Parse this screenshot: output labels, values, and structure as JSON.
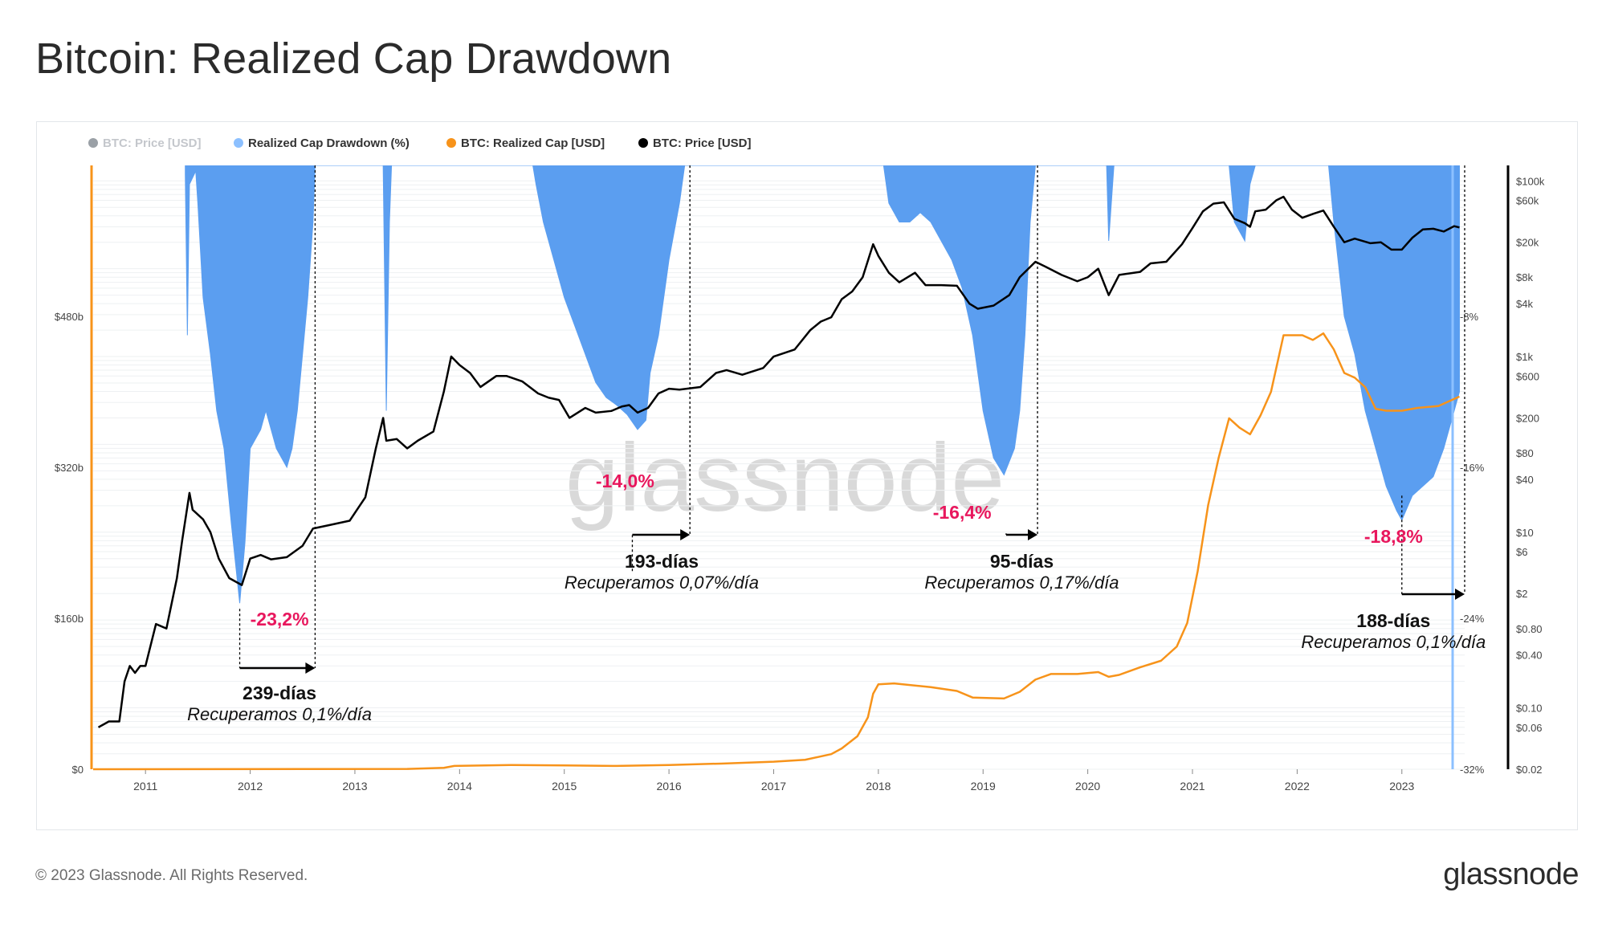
{
  "title": "Bitcoin: Realized Cap Drawdown",
  "footer": {
    "copyright": "© 2023 Glassnode. All Rights Reserved.",
    "logo": "glassnode"
  },
  "watermark": "glassnode",
  "colors": {
    "drawdown": "#5b9ef0",
    "realized_cap": "#f7931a",
    "price": "#000000",
    "price_hidden": "#9aa0a6",
    "annotation_pct": "#e8175d"
  },
  "chart_data": {
    "type": "area",
    "title": "Bitcoin: Realized Cap Drawdown",
    "legend": [
      {
        "label": "BTC: Price [USD]",
        "color": "#9aa0a6",
        "hidden": true
      },
      {
        "label": "Realized Cap Drawdown (%)",
        "color": "#8cc0ff"
      },
      {
        "label": "BTC: Realized Cap [USD]",
        "color": "#f7931a"
      },
      {
        "label": "BTC: Price [USD]",
        "color": "#000000"
      }
    ],
    "legend_position": "top-left",
    "x_axis": {
      "ticks": [
        "2011",
        "2012",
        "2013",
        "2014",
        "2015",
        "2016",
        "2017",
        "2018",
        "2019",
        "2020",
        "2021",
        "2022",
        "2023"
      ],
      "range": [
        2010.5,
        2023.6
      ]
    },
    "y_left": {
      "label": "BTC: Realized Cap [USD]",
      "ticks": [
        "$0",
        "$160b",
        "$320b",
        "$480b"
      ],
      "range": [
        0,
        640
      ]
    },
    "y_drawdown": {
      "ticks": [
        "-8%",
        "-16%",
        "-24%",
        "-32%"
      ],
      "range": [
        -32,
        0
      ]
    },
    "y_price_log": {
      "scale": "log",
      "ticks": [
        "$0.02",
        "$0.06",
        "$0.10",
        "$0.40",
        "$0.80",
        "$2",
        "$6",
        "$10",
        "$40",
        "$80",
        "$200",
        "$600",
        "$1k",
        "$4k",
        "$8k",
        "$20k",
        "$60k",
        "$100k"
      ],
      "range": [
        0.02,
        150000
      ]
    },
    "series": [
      {
        "name": "BTC: Price [USD]",
        "axis": "y_price_log",
        "points": [
          [
            2010.55,
            0.06
          ],
          [
            2010.65,
            0.07
          ],
          [
            2010.75,
            0.07
          ],
          [
            2010.8,
            0.2
          ],
          [
            2010.85,
            0.3
          ],
          [
            2010.9,
            0.25
          ],
          [
            2010.95,
            0.3
          ],
          [
            2011.0,
            0.3
          ],
          [
            2011.1,
            0.9
          ],
          [
            2011.2,
            0.8
          ],
          [
            2011.3,
            3
          ],
          [
            2011.35,
            8
          ],
          [
            2011.42,
            28
          ],
          [
            2011.45,
            18
          ],
          [
            2011.55,
            14
          ],
          [
            2011.62,
            10
          ],
          [
            2011.7,
            5
          ],
          [
            2011.8,
            3
          ],
          [
            2011.92,
            2.5
          ],
          [
            2012.0,
            5
          ],
          [
            2012.1,
            5.5
          ],
          [
            2012.2,
            4.9
          ],
          [
            2012.35,
            5.2
          ],
          [
            2012.5,
            7
          ],
          [
            2012.6,
            11
          ],
          [
            2012.75,
            12
          ],
          [
            2012.95,
            13.5
          ],
          [
            2013.1,
            25
          ],
          [
            2013.2,
            90
          ],
          [
            2013.27,
            200
          ],
          [
            2013.3,
            110
          ],
          [
            2013.4,
            115
          ],
          [
            2013.5,
            90
          ],
          [
            2013.6,
            110
          ],
          [
            2013.75,
            140
          ],
          [
            2013.85,
            400
          ],
          [
            2013.92,
            1000
          ],
          [
            2014.0,
            800
          ],
          [
            2014.1,
            650
          ],
          [
            2014.2,
            450
          ],
          [
            2014.35,
            600
          ],
          [
            2014.45,
            600
          ],
          [
            2014.6,
            520
          ],
          [
            2014.75,
            380
          ],
          [
            2014.85,
            340
          ],
          [
            2014.95,
            320
          ],
          [
            2015.05,
            200
          ],
          [
            2015.2,
            260
          ],
          [
            2015.3,
            230
          ],
          [
            2015.45,
            240
          ],
          [
            2015.55,
            270
          ],
          [
            2015.62,
            280
          ],
          [
            2015.7,
            230
          ],
          [
            2015.8,
            260
          ],
          [
            2015.9,
            380
          ],
          [
            2016.0,
            430
          ],
          [
            2016.1,
            420
          ],
          [
            2016.3,
            450
          ],
          [
            2016.45,
            650
          ],
          [
            2016.55,
            700
          ],
          [
            2016.7,
            620
          ],
          [
            2016.9,
            740
          ],
          [
            2017.0,
            1000
          ],
          [
            2017.2,
            1200
          ],
          [
            2017.35,
            2000
          ],
          [
            2017.45,
            2500
          ],
          [
            2017.55,
            2800
          ],
          [
            2017.65,
            4500
          ],
          [
            2017.75,
            5500
          ],
          [
            2017.85,
            8000
          ],
          [
            2017.95,
            19000
          ],
          [
            2018.0,
            14000
          ],
          [
            2018.1,
            9000
          ],
          [
            2018.2,
            7000
          ],
          [
            2018.35,
            9000
          ],
          [
            2018.45,
            6500
          ],
          [
            2018.6,
            6500
          ],
          [
            2018.75,
            6400
          ],
          [
            2018.87,
            4000
          ],
          [
            2018.95,
            3500
          ],
          [
            2019.1,
            3800
          ],
          [
            2019.25,
            5000
          ],
          [
            2019.35,
            8000
          ],
          [
            2019.5,
            12000
          ],
          [
            2019.6,
            10500
          ],
          [
            2019.75,
            8500
          ],
          [
            2019.9,
            7200
          ],
          [
            2020.0,
            8000
          ],
          [
            2020.1,
            10000
          ],
          [
            2020.2,
            5000
          ],
          [
            2020.3,
            8500
          ],
          [
            2020.5,
            9200
          ],
          [
            2020.6,
            11500
          ],
          [
            2020.75,
            12000
          ],
          [
            2020.9,
            19000
          ],
          [
            2021.0,
            29000
          ],
          [
            2021.1,
            45000
          ],
          [
            2021.2,
            55000
          ],
          [
            2021.3,
            57000
          ],
          [
            2021.4,
            37000
          ],
          [
            2021.5,
            33000
          ],
          [
            2021.55,
            30000
          ],
          [
            2021.6,
            45000
          ],
          [
            2021.7,
            47000
          ],
          [
            2021.8,
            60000
          ],
          [
            2021.87,
            66000
          ],
          [
            2021.95,
            47000
          ],
          [
            2022.05,
            38000
          ],
          [
            2022.15,
            42000
          ],
          [
            2022.25,
            46000
          ],
          [
            2022.35,
            30000
          ],
          [
            2022.45,
            20000
          ],
          [
            2022.55,
            22000
          ],
          [
            2022.7,
            19500
          ],
          [
            2022.8,
            20000
          ],
          [
            2022.9,
            16500
          ],
          [
            2023.0,
            16500
          ],
          [
            2023.1,
            22500
          ],
          [
            2023.2,
            28000
          ],
          [
            2023.3,
            28500
          ],
          [
            2023.4,
            26500
          ],
          [
            2023.5,
            30500
          ],
          [
            2023.55,
            29500
          ]
        ]
      },
      {
        "name": "BTC: Realized Cap [USD]",
        "axis": "y_left",
        "unit": "USD billions",
        "points": [
          [
            2010.5,
            0
          ],
          [
            2013.5,
            0.3
          ],
          [
            2013.85,
            1.5
          ],
          [
            2013.95,
            3.5
          ],
          [
            2014.5,
            4.5
          ],
          [
            2015.0,
            4
          ],
          [
            2015.5,
            3.5
          ],
          [
            2016.0,
            4.5
          ],
          [
            2016.5,
            6
          ],
          [
            2017.0,
            8
          ],
          [
            2017.3,
            10
          ],
          [
            2017.55,
            16
          ],
          [
            2017.65,
            22
          ],
          [
            2017.8,
            35
          ],
          [
            2017.9,
            55
          ],
          [
            2017.95,
            80
          ],
          [
            2018.0,
            90
          ],
          [
            2018.15,
            91
          ],
          [
            2018.5,
            87
          ],
          [
            2018.75,
            83
          ],
          [
            2018.9,
            76
          ],
          [
            2019.2,
            75
          ],
          [
            2019.35,
            82
          ],
          [
            2019.5,
            95
          ],
          [
            2019.65,
            101
          ],
          [
            2019.9,
            101
          ],
          [
            2020.1,
            103
          ],
          [
            2020.2,
            98
          ],
          [
            2020.3,
            100
          ],
          [
            2020.5,
            108
          ],
          [
            2020.7,
            115
          ],
          [
            2020.85,
            130
          ],
          [
            2020.95,
            155
          ],
          [
            2021.05,
            210
          ],
          [
            2021.15,
            280
          ],
          [
            2021.25,
            330
          ],
          [
            2021.35,
            372
          ],
          [
            2021.45,
            362
          ],
          [
            2021.55,
            355
          ],
          [
            2021.65,
            375
          ],
          [
            2021.75,
            400
          ],
          [
            2021.83,
            440
          ],
          [
            2021.87,
            460
          ],
          [
            2022.05,
            460
          ],
          [
            2022.15,
            455
          ],
          [
            2022.25,
            462
          ],
          [
            2022.35,
            445
          ],
          [
            2022.45,
            420
          ],
          [
            2022.55,
            415
          ],
          [
            2022.65,
            405
          ],
          [
            2022.75,
            382
          ],
          [
            2022.85,
            380
          ],
          [
            2023.0,
            380
          ],
          [
            2023.15,
            383
          ],
          [
            2023.35,
            385
          ],
          [
            2023.55,
            395
          ]
        ]
      },
      {
        "name": "Realized Cap Drawdown (%)",
        "axis": "y_drawdown",
        "points": [
          [
            2011.38,
            -0.5
          ],
          [
            2011.4,
            -9
          ],
          [
            2011.42,
            -1
          ],
          [
            2011.48,
            -0.3
          ],
          [
            2011.5,
            -2
          ],
          [
            2011.55,
            -7
          ],
          [
            2011.62,
            -10
          ],
          [
            2011.68,
            -13
          ],
          [
            2011.75,
            -15
          ],
          [
            2011.82,
            -19
          ],
          [
            2011.9,
            -23.2
          ],
          [
            2011.95,
            -20
          ],
          [
            2012.0,
            -15
          ],
          [
            2012.1,
            -14
          ],
          [
            2012.15,
            -13
          ],
          [
            2012.25,
            -15
          ],
          [
            2012.35,
            -16
          ],
          [
            2012.4,
            -15
          ],
          [
            2012.45,
            -13
          ],
          [
            2012.55,
            -7
          ],
          [
            2012.6,
            -3
          ],
          [
            2012.62,
            0
          ],
          [
            2013.27,
            0
          ],
          [
            2013.3,
            -13
          ],
          [
            2013.33,
            -3
          ],
          [
            2013.35,
            0
          ],
          [
            2014.7,
            0
          ],
          [
            2014.73,
            -1
          ],
          [
            2014.8,
            -3
          ],
          [
            2014.9,
            -5
          ],
          [
            2015.0,
            -7
          ],
          [
            2015.1,
            -8.5
          ],
          [
            2015.2,
            -10
          ],
          [
            2015.3,
            -11.5
          ],
          [
            2015.4,
            -12.3
          ],
          [
            2015.5,
            -12.7
          ],
          [
            2015.6,
            -13.2
          ],
          [
            2015.7,
            -14.0
          ],
          [
            2015.78,
            -13.5
          ],
          [
            2015.82,
            -11
          ],
          [
            2015.9,
            -9
          ],
          [
            2016.0,
            -5
          ],
          [
            2016.1,
            -2
          ],
          [
            2016.15,
            0
          ],
          [
            2018.05,
            0
          ],
          [
            2018.1,
            -2
          ],
          [
            2018.2,
            -3
          ],
          [
            2018.3,
            -3
          ],
          [
            2018.4,
            -2.5
          ],
          [
            2018.5,
            -3
          ],
          [
            2018.6,
            -4
          ],
          [
            2018.7,
            -5
          ],
          [
            2018.8,
            -6.5
          ],
          [
            2018.9,
            -9
          ],
          [
            2019.0,
            -13
          ],
          [
            2019.1,
            -15.5
          ],
          [
            2019.2,
            -16.4
          ],
          [
            2019.3,
            -15
          ],
          [
            2019.35,
            -13
          ],
          [
            2019.4,
            -9
          ],
          [
            2019.45,
            -3
          ],
          [
            2019.5,
            0
          ],
          [
            2020.18,
            0
          ],
          [
            2020.2,
            -4
          ],
          [
            2020.25,
            0
          ],
          [
            2021.35,
            0
          ],
          [
            2021.4,
            -3
          ],
          [
            2021.5,
            -4
          ],
          [
            2021.55,
            -1
          ],
          [
            2021.6,
            0
          ],
          [
            2022.3,
            0
          ],
          [
            2022.35,
            -3
          ],
          [
            2022.45,
            -8
          ],
          [
            2022.55,
            -10
          ],
          [
            2022.65,
            -13
          ],
          [
            2022.75,
            -15
          ],
          [
            2022.85,
            -17
          ],
          [
            2022.95,
            -18.3
          ],
          [
            2023.0,
            -18.8
          ],
          [
            2023.1,
            -17.5
          ],
          [
            2023.2,
            -17
          ],
          [
            2023.3,
            -16.5
          ],
          [
            2023.4,
            -15
          ],
          [
            2023.5,
            -13
          ],
          [
            2023.55,
            -12
          ]
        ]
      }
    ],
    "annotations": [
      {
        "drawdown": "-23,2%",
        "days": "239-días",
        "rate": "Recuperamos 0,1%/día"
      },
      {
        "drawdown": "-14,0%",
        "days": "193-días",
        "rate": "Recuperamos 0,07%/día"
      },
      {
        "drawdown": "-16,4%",
        "days": "95-días",
        "rate": "Recuperamos 0,17%/día"
      },
      {
        "drawdown": "-18,8%",
        "days": "188-días",
        "rate": "Recuperamos 0,1%/día"
      }
    ]
  }
}
